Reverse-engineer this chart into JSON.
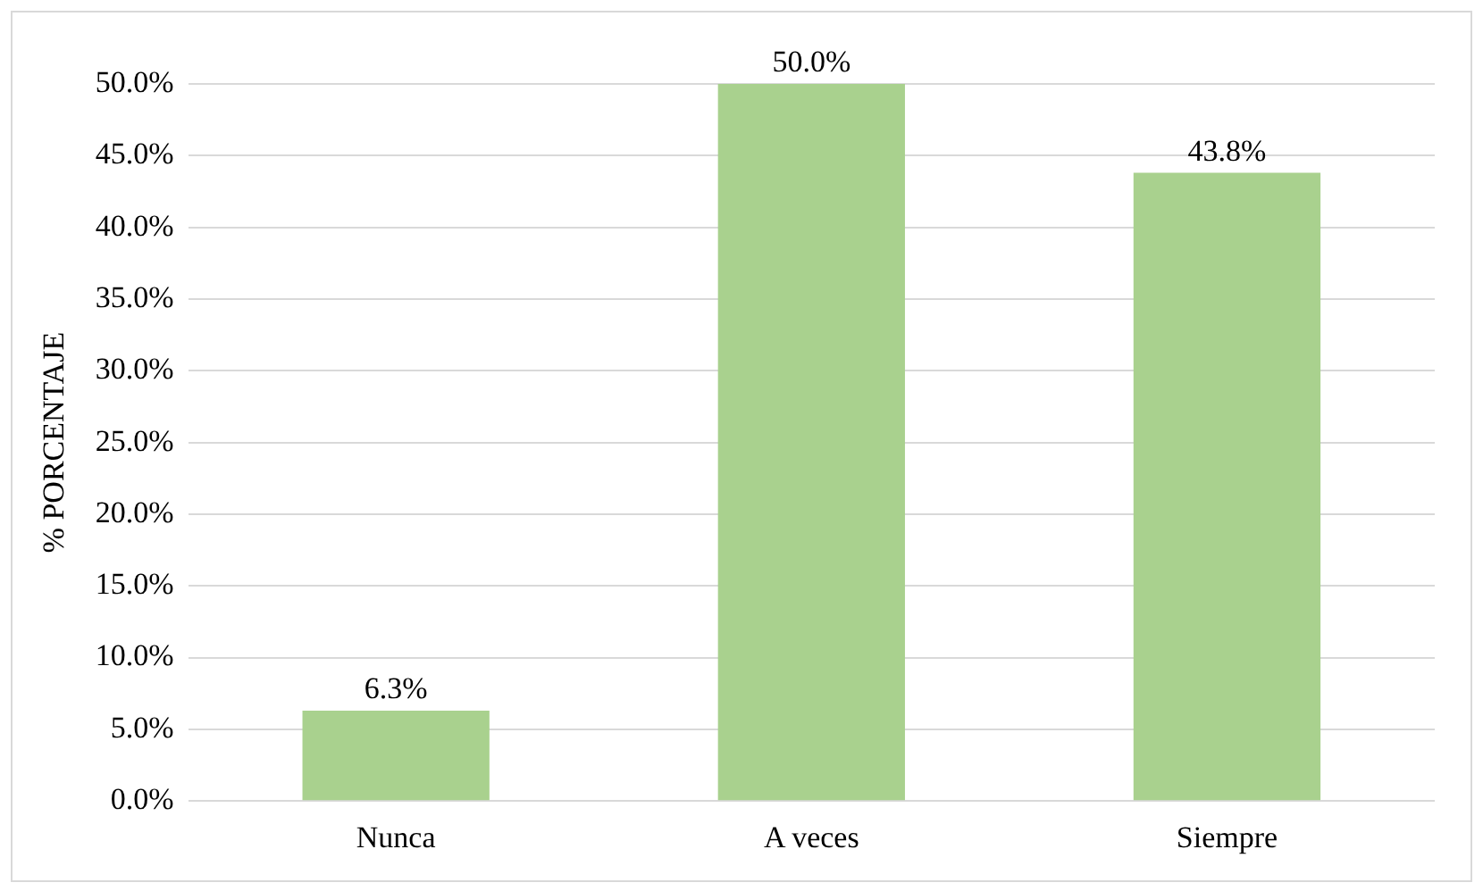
{
  "chart_data": {
    "type": "bar",
    "ylabel": "% PORCENTAJE",
    "categories": [
      "Nunca",
      "A veces",
      "Siempre"
    ],
    "values": [
      6.3,
      50.0,
      43.8
    ],
    "value_labels": [
      "6.3%",
      "50.0%",
      "43.8%"
    ],
    "color": "#a9d18e",
    "ylim": [
      0,
      50
    ],
    "yticks": [
      {
        "value": 0,
        "label": "0.0%"
      },
      {
        "value": 5,
        "label": "5.0%"
      },
      {
        "value": 10,
        "label": "10.0%"
      },
      {
        "value": 15,
        "label": "15.0%"
      },
      {
        "value": 20,
        "label": "20.0%"
      },
      {
        "value": 25,
        "label": "25.0%"
      },
      {
        "value": 30,
        "label": "30.0%"
      },
      {
        "value": 35,
        "label": "35.0%"
      },
      {
        "value": 40,
        "label": "40.0%"
      },
      {
        "value": 45,
        "label": "45.0%"
      },
      {
        "value": 50,
        "label": "50.0%"
      }
    ],
    "grid": "y",
    "legend": false
  }
}
